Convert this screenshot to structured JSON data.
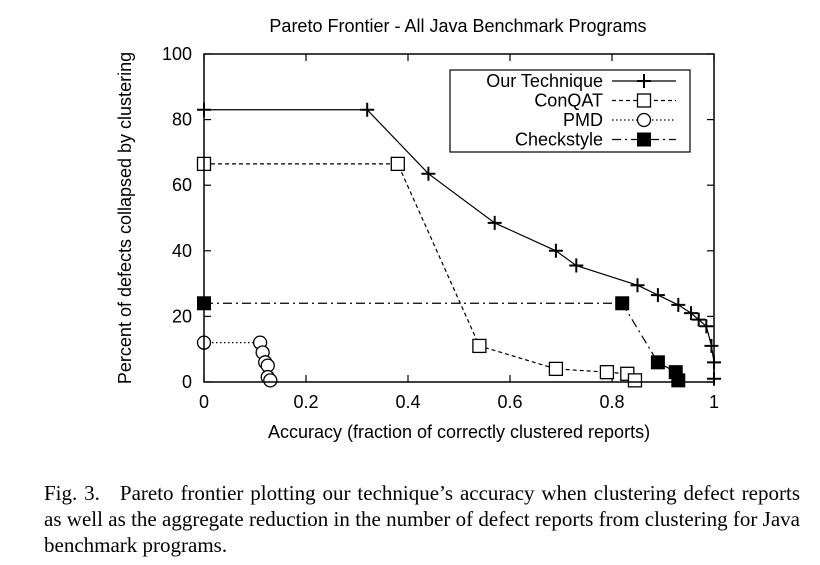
{
  "chart_data": {
    "type": "line",
    "title": "Pareto Frontier - All Java Benchmark Programs",
    "xlabel": "Accuracy (fraction of correctly clustered reports)",
    "ylabel": "Percent of defects collapsed by clustering",
    "xlim": [
      0,
      1
    ],
    "ylim": [
      0,
      100
    ],
    "xticks": [
      0,
      0.2,
      0.4,
      0.6,
      0.8,
      1
    ],
    "xtick_labels": [
      "0",
      "0.2",
      "0.4",
      "0.6",
      "0.8",
      "1"
    ],
    "yticks": [
      0,
      20,
      40,
      60,
      80,
      100
    ],
    "ytick_labels": [
      "0",
      "20",
      "40",
      "60",
      "80",
      "100"
    ],
    "legend_position": "top-right",
    "grid": false,
    "series": [
      {
        "name": "Our Technique",
        "marker": "plus",
        "line": "solid",
        "x": [
          0,
          0.32,
          0.44,
          0.57,
          0.69,
          0.73,
          0.85,
          0.89,
          0.93,
          0.955,
          0.97,
          0.985,
          0.995,
          1.0,
          1.0
        ],
        "y": [
          83,
          83,
          63.5,
          48.5,
          40,
          35.5,
          29.5,
          26.5,
          23.5,
          21,
          19,
          17,
          11,
          6,
          1
        ]
      },
      {
        "name": "ConQAT",
        "marker": "open-square",
        "line": "dashed",
        "x": [
          0,
          0.38,
          0.54,
          0.69,
          0.79,
          0.83,
          0.845
        ],
        "y": [
          66.5,
          66.5,
          11,
          4,
          3,
          2.5,
          0.5
        ]
      },
      {
        "name": "PMD",
        "marker": "open-circle",
        "line": "dotted",
        "x": [
          0,
          0.11,
          0.115,
          0.12,
          0.125,
          0.125,
          0.13
        ],
        "y": [
          12,
          12,
          9,
          6,
          5,
          1.5,
          0.5
        ]
      },
      {
        "name": "Checkstyle",
        "marker": "filled-square",
        "line": "dash-dot",
        "x": [
          0,
          0.82,
          0.89,
          0.925,
          0.93
        ],
        "y": [
          24,
          24,
          6,
          3,
          0.5
        ]
      }
    ]
  },
  "caption": {
    "label": "Fig. 3.",
    "text": "Pareto frontier plotting our technique’s accuracy when clustering defect reports as well as the aggregate reduction in the number of defect reports from clustering for Java benchmark programs."
  }
}
